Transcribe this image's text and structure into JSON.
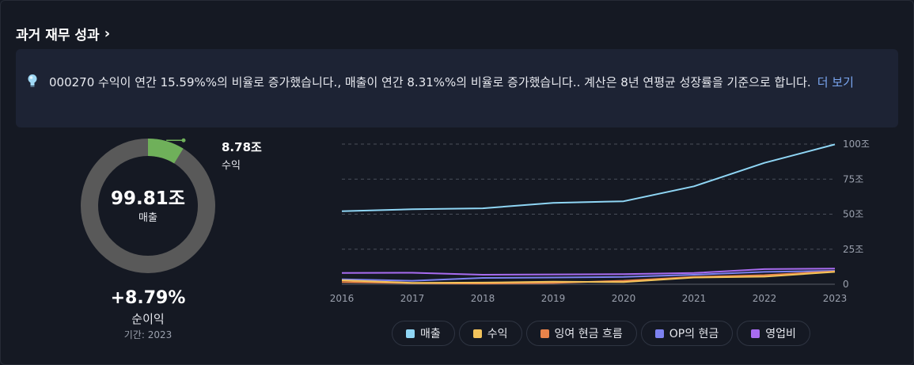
{
  "header": {
    "title": "과거 재무 성과"
  },
  "insight": {
    "text": "000270 수익이 연간 15.59%%의 비율로 증가했습니다., 매출이 연간 8.31%%의 비율로 증가했습니다.. 계산은 8년 연평균 성장률을 기준으로 합니다.",
    "more_label": "더 보기"
  },
  "donut": {
    "center_value": "99.81조",
    "center_label": "매출",
    "slice_value": "8.78조",
    "slice_label": "수익",
    "slice_fraction": 0.088,
    "slice_color": "#6fb05a",
    "ring_color": "#595959"
  },
  "growth": {
    "value": "+8.79%",
    "label": "순이익",
    "period": "기간: 2023"
  },
  "chart_data": {
    "type": "line",
    "x": [
      "2016",
      "2017",
      "2018",
      "2019",
      "2020",
      "2021",
      "2022",
      "2023"
    ],
    "y_ticks": [
      "100조",
      "75조",
      "50조",
      "25조",
      "0"
    ],
    "ylim": [
      0,
      100
    ],
    "grid": true,
    "legend_position": "bottom",
    "series": [
      {
        "name": "매출",
        "color": "#8fd6f5",
        "values": [
          52.1,
          53.5,
          54.2,
          58.1,
          59.2,
          69.9,
          86.6,
          99.8
        ]
      },
      {
        "name": "수익",
        "color": "#f2c35b",
        "values": [
          2.8,
          1.0,
          1.2,
          1.8,
          1.5,
          4.8,
          5.4,
          8.8
        ]
      },
      {
        "name": "잉여 현금 흐름",
        "color": "#e8834a",
        "values": [
          1.5,
          0.8,
          0.5,
          0.9,
          2.5,
          5.2,
          6.5,
          9.2
        ]
      },
      {
        "name": "OP의 현금",
        "color": "#7d82f0",
        "values": [
          3.5,
          2.5,
          4.5,
          4.8,
          5.2,
          6.8,
          8.8,
          9.6
        ]
      },
      {
        "name": "영업비",
        "color": "#a86cf0",
        "values": [
          8.0,
          8.2,
          6.8,
          7.0,
          7.2,
          8.0,
          10.8,
          11.2
        ]
      }
    ]
  }
}
